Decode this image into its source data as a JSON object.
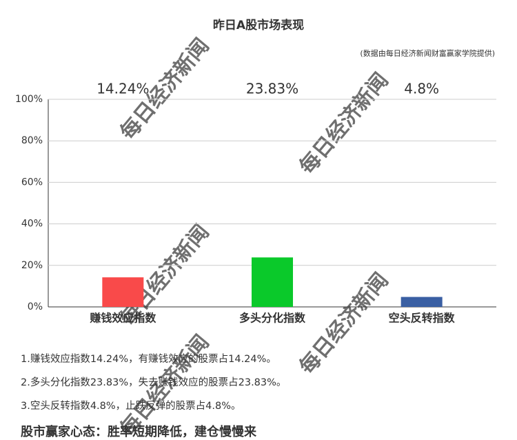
{
  "chart_data": {
    "type": "bar",
    "title": "昨日A股市场表现",
    "subtitle": "(数据由每日经济新闻财富赢家学院提供)",
    "categories": [
      "赚钱效应指数",
      "多头分化指数",
      "空头反转指数"
    ],
    "values": [
      14.24,
      23.83,
      4.8
    ],
    "value_labels": [
      "14.24%",
      "23.83%",
      "4.8%"
    ],
    "colors": [
      "#f94a4a",
      "#0ac92a",
      "#3a5fa3"
    ],
    "value_label_colors": [
      "#e8140f",
      "#1aad3a",
      "#3f63a6"
    ],
    "ylim": [
      0,
      100
    ],
    "yticks": [
      {
        "value": 0,
        "label": "0%"
      },
      {
        "value": 20,
        "label": "20%"
      },
      {
        "value": 40,
        "label": "40%"
      },
      {
        "value": 60,
        "label": "60%"
      },
      {
        "value": 80,
        "label": "80%"
      },
      {
        "value": 100,
        "label": "100%"
      }
    ],
    "grid": true
  },
  "notes": [
    "1.赚钱效应指数14.24%，有赚钱效应的股票占14.24%。",
    "2.多头分化指数23.83%，失去赚钱效应的股票占23.83%。",
    "3.空头反转指数4.8%，止跌反弹的股票占4.8%。"
  ],
  "slogan": "股市赢家心态：胜率短期降低，建仓慢慢来",
  "watermark": "每日经济新闻"
}
